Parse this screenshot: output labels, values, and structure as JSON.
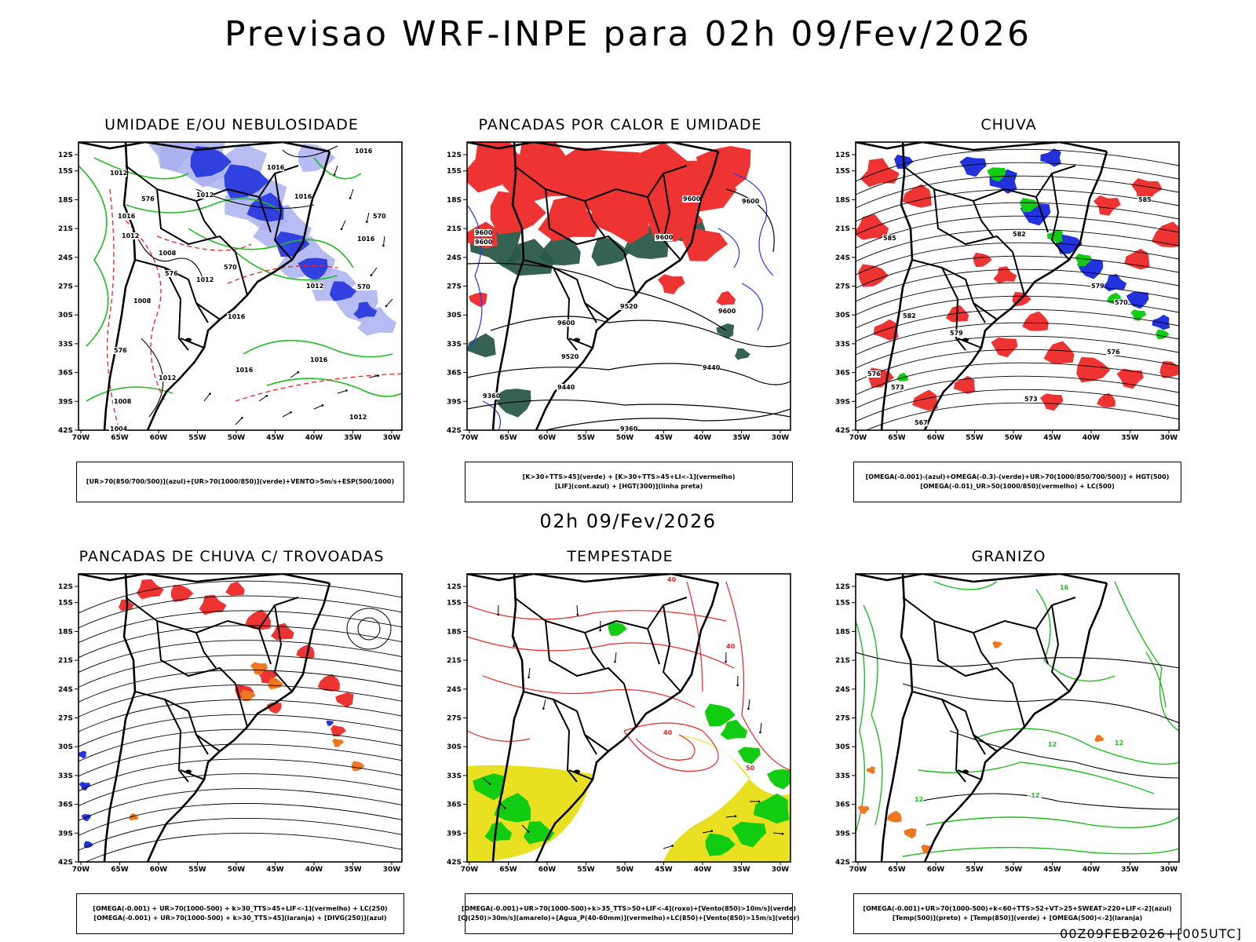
{
  "main_title": "Previsao WRF-INPE  para 02h 09/Fev/2026",
  "mid_title": "02h 09/Fev/2026",
  "footer": "00Z09FEB2026+[005UTC]",
  "lat_ticks": [
    "12S",
    "15S",
    "18S",
    "21S",
    "24S",
    "27S",
    "30S",
    "33S",
    "36S",
    "39S",
    "42S"
  ],
  "lon_ticks": [
    "70W",
    "65W",
    "60W",
    "55W",
    "50W",
    "45W",
    "40W",
    "35W",
    "30W"
  ],
  "colors": {
    "blue_fill": "#2233dd",
    "light_blue_fill": "#aab0f0",
    "red_fill": "#ee3333",
    "green_fill": "#11cc11",
    "darkgreen_fill": "#2a5a4a",
    "orange_fill": "#ee7722",
    "yellow_fill": "#e8e020",
    "green_contour": "#22bb22",
    "red_contour": "#ee2222",
    "blue_contour": "#2233ff"
  },
  "panels": [
    {
      "title": "UMIDADE E/OU NEBULOSIDADE",
      "legend": [
        "[UR>70(850/700/500)](azul)+[UR>70(1000/850)](verde)+VENTO>5m/s+ESP(500/1000)"
      ],
      "labels": [
        {
          "t": "1012",
          "x": 40,
          "y": 42
        },
        {
          "t": "1016",
          "x": 240,
          "y": 35
        },
        {
          "t": "1016",
          "x": 352,
          "y": 14
        },
        {
          "t": "1012",
          "x": 150,
          "y": 70
        },
        {
          "t": "1016",
          "x": 275,
          "y": 72
        },
        {
          "t": "1016",
          "x": 50,
          "y": 97
        },
        {
          "t": "1012",
          "x": 55,
          "y": 122
        },
        {
          "t": "576",
          "x": 80,
          "y": 75
        },
        {
          "t": "570",
          "x": 375,
          "y": 97
        },
        {
          "t": "1016",
          "x": 355,
          "y": 126
        },
        {
          "t": "1008",
          "x": 102,
          "y": 144
        },
        {
          "t": "576",
          "x": 110,
          "y": 170
        },
        {
          "t": "1012",
          "x": 150,
          "y": 178
        },
        {
          "t": "570",
          "x": 185,
          "y": 162
        },
        {
          "t": "1012",
          "x": 290,
          "y": 186
        },
        {
          "t": "570",
          "x": 355,
          "y": 187
        },
        {
          "t": "1008",
          "x": 70,
          "y": 205
        },
        {
          "t": "1016",
          "x": 190,
          "y": 225
        },
        {
          "t": "1016",
          "x": 200,
          "y": 293
        },
        {
          "t": "1016",
          "x": 295,
          "y": 280
        },
        {
          "t": "1012",
          "x": 102,
          "y": 303
        },
        {
          "t": "576",
          "x": 45,
          "y": 268
        },
        {
          "t": "1012",
          "x": 345,
          "y": 353
        },
        {
          "t": "1008",
          "x": 45,
          "y": 333
        },
        {
          "t": "1004",
          "x": 40,
          "y": 368
        }
      ]
    },
    {
      "title": "PANCADAS POR CALOR E UMIDADE",
      "legend": [
        "[K>30+TTS>45](verde)  +  [K>30+TTS>45+LI<-1](vermelho)",
        "[LIF](cont.azul)  +  [HGT(300)](linha preta)"
      ],
      "labels": [
        {
          "t": "9600",
          "x": 275,
          "y": 75
        },
        {
          "t": "9600",
          "x": 350,
          "y": 78
        },
        {
          "t": "9600",
          "x": 10,
          "y": 118
        },
        {
          "t": "9600",
          "x": 10,
          "y": 130
        },
        {
          "t": "9600",
          "x": 240,
          "y": 124
        },
        {
          "t": "9520",
          "x": 195,
          "y": 212
        },
        {
          "t": "9600",
          "x": 320,
          "y": 218
        },
        {
          "t": "9600",
          "x": 115,
          "y": 233
        },
        {
          "t": "9520",
          "x": 120,
          "y": 276
        },
        {
          "t": "9440",
          "x": 300,
          "y": 290
        },
        {
          "t": "9440",
          "x": 115,
          "y": 315
        },
        {
          "t": "9360",
          "x": 20,
          "y": 326
        },
        {
          "t": "9360",
          "x": 195,
          "y": 368
        }
      ]
    },
    {
      "title": "CHUVA",
      "legend": [
        "[OMEGA(-0.001)-(azul)+OMEGA(-0.3)-(verde)+UR>70(1000/850/700/500)] + HGT(500)",
        "[OMEGA(-0.01)_UR>50(1000/850)(vermelho) + LC(500)"
      ],
      "labels": [
        {
          "t": "585",
          "x": 360,
          "y": 76
        },
        {
          "t": "585",
          "x": 35,
          "y": 125
        },
        {
          "t": "582",
          "x": 200,
          "y": 120
        },
        {
          "t": "582",
          "x": 60,
          "y": 224
        },
        {
          "t": "579",
          "x": 120,
          "y": 246
        },
        {
          "t": "576",
          "x": 15,
          "y": 298
        },
        {
          "t": "573",
          "x": 45,
          "y": 315
        },
        {
          "t": "573",
          "x": 215,
          "y": 330
        },
        {
          "t": "576",
          "x": 320,
          "y": 270
        },
        {
          "t": "570",
          "x": 330,
          "y": 207
        },
        {
          "t": "579",
          "x": 300,
          "y": 186
        },
        {
          "t": "567",
          "x": 75,
          "y": 360
        }
      ]
    },
    {
      "title": "PANCADAS DE CHUVA C/ TROVOADAS",
      "legend": [
        "[OMEGA(-0.001) + UR>70(1000-500) + k>30_TTS>45+LIF<-1](vermelho) + LC(250)",
        "[OMEGA(-0.001) + UR>70(1000-500) + k>30_TTS>45](laranja) + [DIVG(250)](azul)"
      ],
      "labels": []
    },
    {
      "title": "TEMPESTADE",
      "legend": [
        "[OMEGA(-0.001)+UR>70(1000-500)+k>35_TTS>50+LIF<-4](roxo)+[Vento(850)>10m/s](verde)",
        "[CJ(250)>30m/s](amarelo)+[Agua_P(40-60mm)](vermelho)+LC(850)+[Vento(850)>15m/s](vetor)"
      ],
      "labels": [
        {
          "t": "40",
          "x": 250,
          "y": 205
        },
        {
          "t": "50",
          "x": 355,
          "y": 250
        },
        {
          "t": "40",
          "x": 330,
          "y": 95
        },
        {
          "t": "40",
          "x": 255,
          "y": 10
        }
      ]
    },
    {
      "title": "GRANIZO",
      "legend": [
        "[OMEGA(-0.001)+UR>70(1000-500)+k<60+TTS>52+VT>25+SWEAT>220+LIF<-2](azul)",
        "[Temp(500)](preto) + [Temp(850)](verde) + [OMEGA(500)<-2](laranja)"
      ],
      "labels": [
        {
          "t": "12",
          "x": 245,
          "y": 220
        },
        {
          "t": "12",
          "x": 75,
          "y": 290
        },
        {
          "t": "-12",
          "x": 220,
          "y": 285
        },
        {
          "t": "12",
          "x": 330,
          "y": 218
        },
        {
          "t": "16",
          "x": 260,
          "y": 20
        }
      ]
    }
  ]
}
